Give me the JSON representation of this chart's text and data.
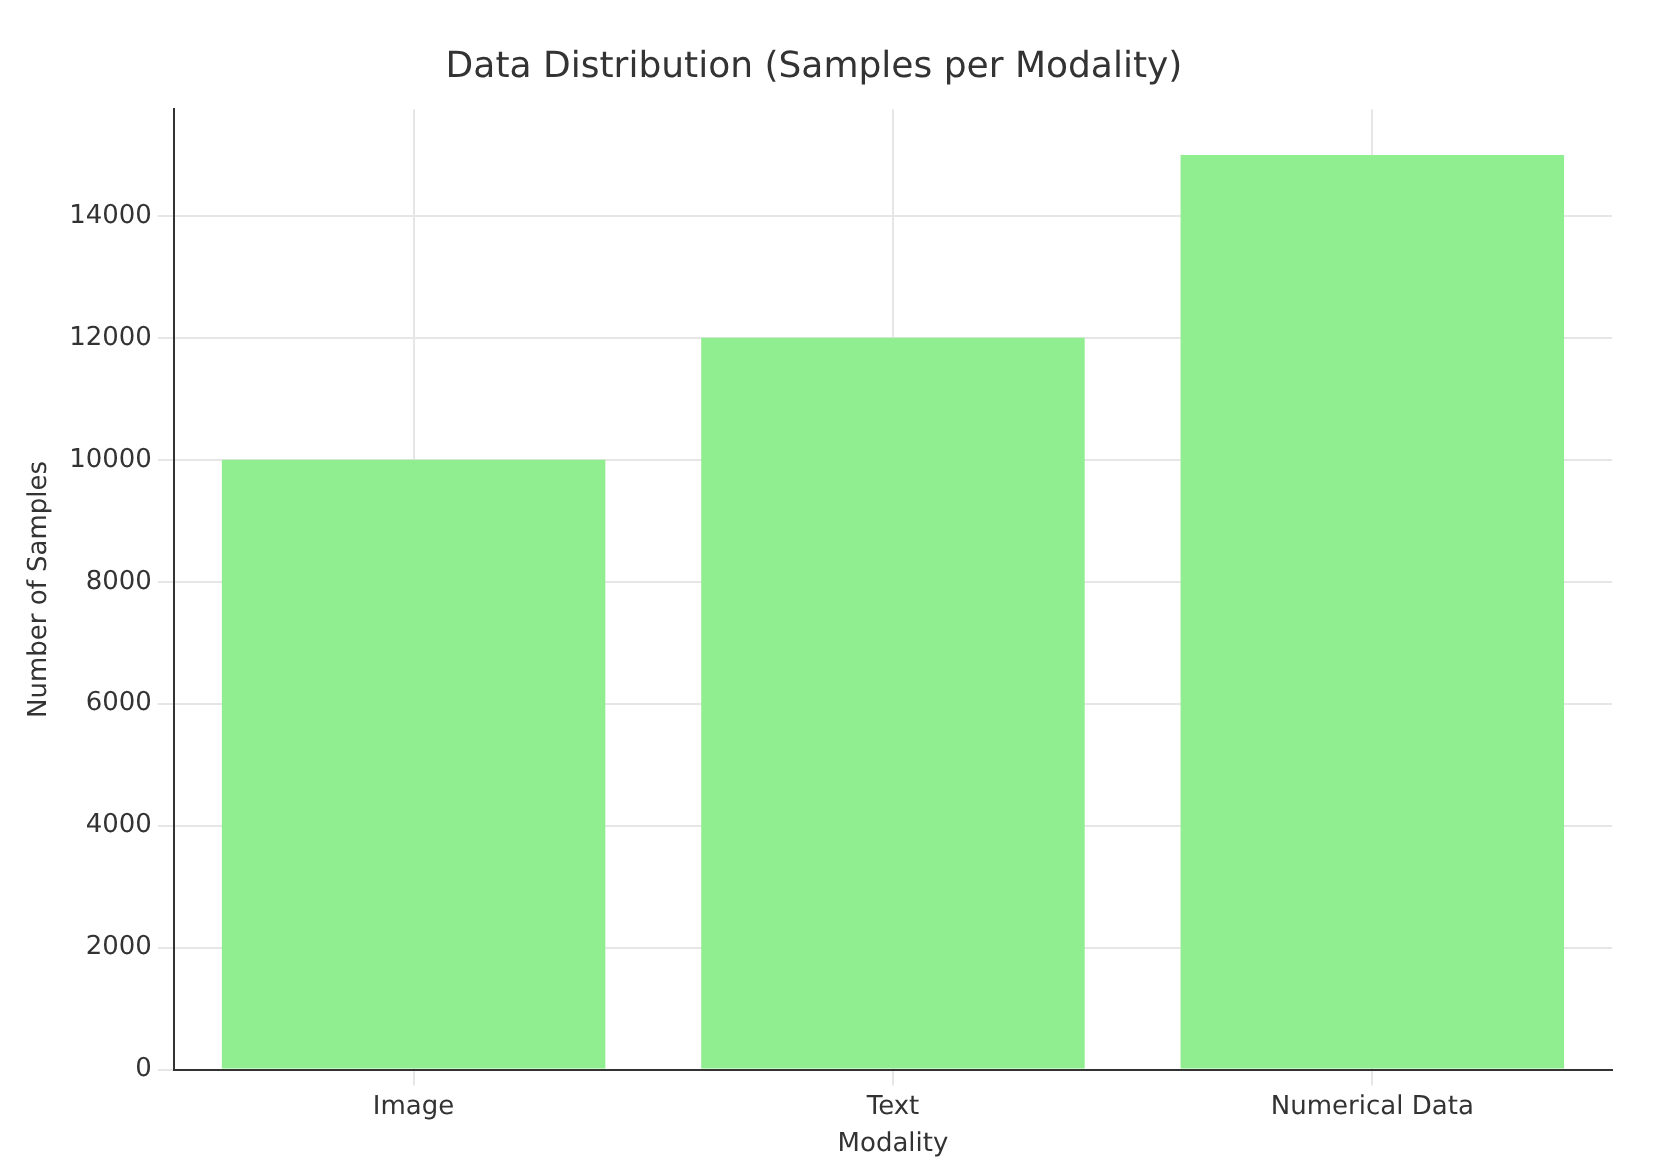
{
  "chart_data": {
    "type": "bar",
    "title": "Data Distribution (Samples per Modality)",
    "xlabel": "Modality",
    "ylabel": "Number of Samples",
    "categories": [
      "Image",
      "Text",
      "Numerical Data"
    ],
    "values": [
      10000,
      12000,
      15000
    ],
    "color": "#90ee90",
    "ylim": [
      0,
      15750
    ],
    "yticks": [
      0,
      2000,
      4000,
      6000,
      8000,
      10000,
      12000,
      14000
    ],
    "grid": true
  }
}
